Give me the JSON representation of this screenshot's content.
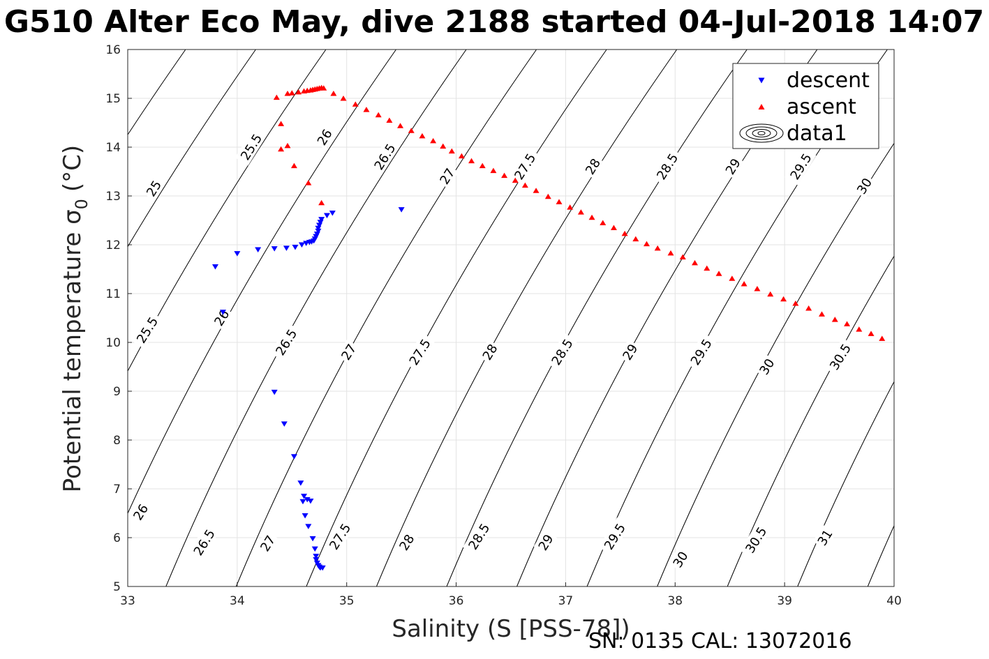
{
  "chart_data": {
    "type": "scatter",
    "title": "G510 Alter Eco May, dive 2188 started 04-Jul-2018 14:07",
    "xlabel": "Salinity (S [PSS-78])",
    "ylabel_main": "Potential temperature σ",
    "ylabel_sub": "0",
    "ylabel_unit": "(°C)",
    "xlim": [
      33,
      40
    ],
    "ylim": [
      5,
      16
    ],
    "grid": true,
    "legend_placement": "top-right",
    "x_ticks": [
      "33",
      "34",
      "35",
      "36",
      "37",
      "38",
      "39",
      "40"
    ],
    "y_ticks": [
      "5",
      "6",
      "7",
      "8",
      "9",
      "10",
      "11",
      "12",
      "13",
      "14",
      "15",
      "16"
    ],
    "legend": [
      {
        "label": "descent",
        "color": "#0000ff",
        "marker": "down-triangle"
      },
      {
        "label": "ascent",
        "color": "#ff0000",
        "marker": "up-triangle"
      },
      {
        "label": "data1",
        "color": "#000000",
        "marker": "contour"
      }
    ],
    "series": [
      {
        "name": "descent",
        "color": "#0000ff",
        "marker": "down-triangle",
        "points": [
          [
            33.8,
            11.55
          ],
          [
            33.87,
            10.62
          ],
          [
            34.0,
            11.82
          ],
          [
            34.19,
            11.9
          ],
          [
            34.34,
            11.92
          ],
          [
            34.45,
            11.93
          ],
          [
            34.53,
            11.95
          ],
          [
            34.59,
            12.0
          ],
          [
            34.63,
            12.03
          ],
          [
            34.66,
            12.05
          ],
          [
            34.68,
            12.06
          ],
          [
            34.7,
            12.08
          ],
          [
            34.71,
            12.12
          ],
          [
            34.72,
            12.17
          ],
          [
            34.73,
            12.22
          ],
          [
            34.74,
            12.28
          ],
          [
            34.74,
            12.34
          ],
          [
            34.75,
            12.4
          ],
          [
            34.76,
            12.46
          ],
          [
            34.77,
            12.52
          ],
          [
            34.82,
            12.6
          ],
          [
            34.87,
            12.65
          ],
          [
            35.5,
            12.72
          ],
          [
            34.34,
            8.98
          ],
          [
            34.43,
            8.33
          ],
          [
            34.52,
            7.66
          ],
          [
            34.58,
            7.12
          ],
          [
            34.61,
            6.85
          ],
          [
            34.6,
            6.74
          ],
          [
            34.64,
            6.78
          ],
          [
            34.67,
            6.75
          ],
          [
            34.62,
            6.45
          ],
          [
            34.65,
            6.23
          ],
          [
            34.69,
            5.98
          ],
          [
            34.71,
            5.77
          ],
          [
            34.72,
            5.62
          ],
          [
            34.72,
            5.55
          ],
          [
            34.73,
            5.48
          ],
          [
            34.74,
            5.43
          ],
          [
            34.75,
            5.4
          ],
          [
            34.76,
            5.38
          ],
          [
            34.78,
            5.38
          ]
        ]
      },
      {
        "name": "ascent",
        "color": "#ff0000",
        "marker": "up-triangle",
        "points": [
          [
            34.36,
            15.02
          ],
          [
            34.4,
            14.48
          ],
          [
            34.4,
            13.96
          ],
          [
            34.46,
            14.03
          ],
          [
            34.52,
            13.62
          ],
          [
            34.65,
            13.27
          ],
          [
            34.77,
            12.86
          ],
          [
            34.46,
            15.1
          ],
          [
            34.5,
            15.11
          ],
          [
            34.56,
            15.13
          ],
          [
            34.61,
            15.15
          ],
          [
            34.64,
            15.16
          ],
          [
            34.67,
            15.17
          ],
          [
            34.69,
            15.18
          ],
          [
            34.71,
            15.19
          ],
          [
            34.73,
            15.2
          ],
          [
            34.75,
            15.21
          ],
          [
            34.77,
            15.22
          ],
          [
            34.79,
            15.21
          ],
          [
            34.88,
            15.1
          ],
          [
            34.97,
            15.0
          ],
          [
            35.08,
            14.88
          ],
          [
            35.18,
            14.77
          ],
          [
            35.29,
            14.66
          ],
          [
            35.39,
            14.55
          ],
          [
            35.49,
            14.44
          ],
          [
            35.59,
            14.34
          ],
          [
            35.69,
            14.23
          ],
          [
            35.79,
            14.13
          ],
          [
            35.88,
            14.02
          ],
          [
            35.96,
            13.92
          ],
          [
            36.05,
            13.82
          ],
          [
            36.14,
            13.72
          ],
          [
            36.24,
            13.62
          ],
          [
            36.34,
            13.52
          ],
          [
            36.44,
            13.42
          ],
          [
            36.54,
            13.32
          ],
          [
            36.63,
            13.22
          ],
          [
            36.73,
            13.11
          ],
          [
            36.84,
            12.99
          ],
          [
            36.94,
            12.88
          ],
          [
            37.04,
            12.77
          ],
          [
            37.14,
            12.67
          ],
          [
            37.24,
            12.56
          ],
          [
            37.34,
            12.45
          ],
          [
            37.44,
            12.35
          ],
          [
            37.54,
            12.23
          ],
          [
            37.64,
            12.12
          ],
          [
            37.74,
            12.02
          ],
          [
            37.84,
            11.93
          ],
          [
            37.96,
            11.83
          ],
          [
            38.07,
            11.75
          ],
          [
            38.18,
            11.63
          ],
          [
            38.29,
            11.52
          ],
          [
            38.4,
            11.41
          ],
          [
            38.52,
            11.31
          ],
          [
            38.63,
            11.2
          ],
          [
            38.75,
            11.1
          ],
          [
            38.87,
            10.99
          ],
          [
            38.99,
            10.89
          ],
          [
            39.1,
            10.8
          ],
          [
            39.22,
            10.7
          ],
          [
            39.34,
            10.58
          ],
          [
            39.46,
            10.47
          ],
          [
            39.57,
            10.38
          ],
          [
            39.68,
            10.27
          ],
          [
            39.79,
            10.18
          ],
          [
            39.89,
            10.08
          ]
        ]
      }
    ],
    "contours": {
      "levels": [
        "25",
        "25.5",
        "26",
        "26.5",
        "27",
        "27.5",
        "28",
        "28.5",
        "29",
        "29.5",
        "30",
        "30.5",
        "31"
      ],
      "labels": [
        {
          "text": "25",
          "x": 33.24,
          "y": 13.15,
          "angle": -58
        },
        {
          "text": "25.5",
          "x": 34.13,
          "y": 14.0,
          "angle": -58
        },
        {
          "text": "26",
          "x": 34.8,
          "y": 14.2,
          "angle": -58
        },
        {
          "text": "26.5",
          "x": 35.35,
          "y": 13.8,
          "angle": -58
        },
        {
          "text": "27",
          "x": 35.92,
          "y": 13.4,
          "angle": -58
        },
        {
          "text": "27.5",
          "x": 36.63,
          "y": 13.6,
          "angle": -58
        },
        {
          "text": "28",
          "x": 37.25,
          "y": 13.6,
          "angle": -58
        },
        {
          "text": "28.5",
          "x": 37.93,
          "y": 13.6,
          "angle": -58
        },
        {
          "text": "29",
          "x": 38.53,
          "y": 13.6,
          "angle": -58
        },
        {
          "text": "29.5",
          "x": 39.15,
          "y": 13.6,
          "angle": -58
        },
        {
          "text": "30",
          "x": 39.73,
          "y": 13.2,
          "angle": -58
        },
        {
          "text": "25.5",
          "x": 33.18,
          "y": 10.25,
          "angle": -58
        },
        {
          "text": "26",
          "x": 33.86,
          "y": 10.5,
          "angle": -58
        },
        {
          "text": "26.5",
          "x": 34.45,
          "y": 10.0,
          "angle": -58
        },
        {
          "text": "27",
          "x": 35.02,
          "y": 9.8,
          "angle": -58
        },
        {
          "text": "27.5",
          "x": 35.67,
          "y": 9.8,
          "angle": -58
        },
        {
          "text": "28",
          "x": 36.31,
          "y": 9.8,
          "angle": -58
        },
        {
          "text": "28.5",
          "x": 36.97,
          "y": 9.8,
          "angle": -58
        },
        {
          "text": "29",
          "x": 37.59,
          "y": 9.8,
          "angle": -58
        },
        {
          "text": "29.5",
          "x": 38.24,
          "y": 9.8,
          "angle": -58
        },
        {
          "text": "30",
          "x": 38.84,
          "y": 9.5,
          "angle": -58
        },
        {
          "text": "30.5",
          "x": 39.51,
          "y": 9.7,
          "angle": -58
        },
        {
          "text": "26",
          "x": 33.12,
          "y": 6.52,
          "angle": -58
        },
        {
          "text": "26.5",
          "x": 33.7,
          "y": 5.9,
          "angle": -58
        },
        {
          "text": "27",
          "x": 34.28,
          "y": 5.88,
          "angle": -58
        },
        {
          "text": "27.5",
          "x": 34.94,
          "y": 6.02,
          "angle": -58
        },
        {
          "text": "28",
          "x": 35.55,
          "y": 5.9,
          "angle": -58
        },
        {
          "text": "28.5",
          "x": 36.21,
          "y": 6.02,
          "angle": -58
        },
        {
          "text": "29",
          "x": 36.82,
          "y": 5.9,
          "angle": -58
        },
        {
          "text": "29.5",
          "x": 37.45,
          "y": 6.02,
          "angle": -58
        },
        {
          "text": "30",
          "x": 38.05,
          "y": 5.55,
          "angle": -58
        },
        {
          "text": "30.5",
          "x": 38.74,
          "y": 5.95,
          "angle": -58
        },
        {
          "text": "31",
          "x": 39.37,
          "y": 6.0,
          "angle": -58
        }
      ]
    }
  },
  "footer": {
    "caption": "SN: 0135  CAL: 13072016"
  }
}
